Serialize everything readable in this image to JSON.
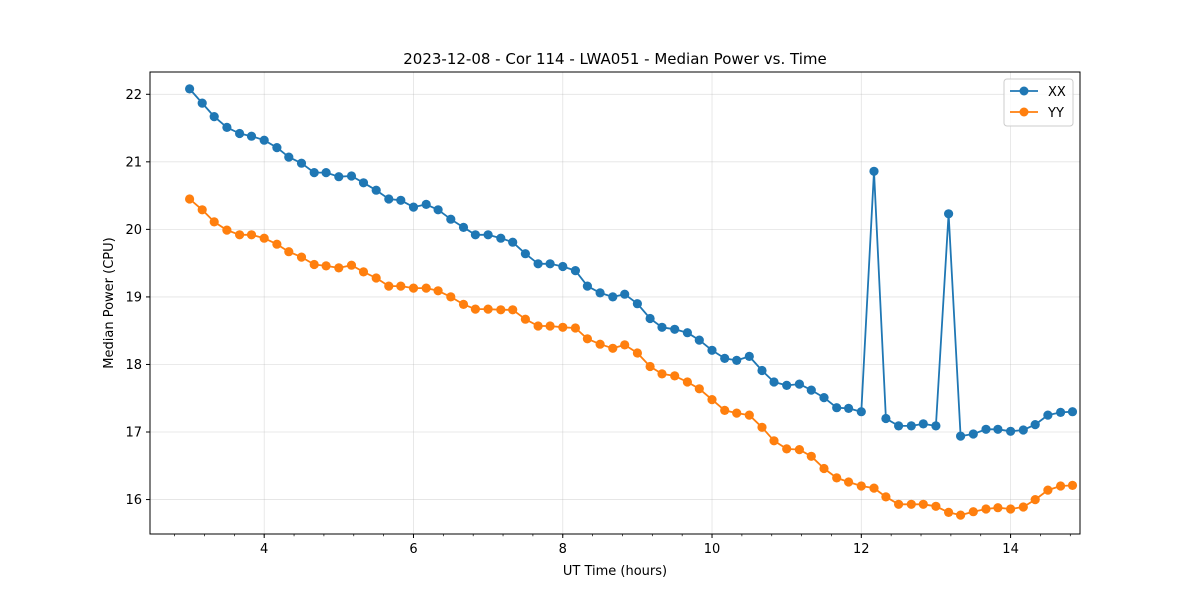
{
  "chart_data": {
    "type": "line",
    "title": "2023-12-08 - Cor 114 - LWA051 - Median Power vs. Time",
    "xlabel": "UT Time (hours)",
    "ylabel": "Median Power (CPU)",
    "xlim": [
      2.47,
      14.93
    ],
    "ylim": [
      15.49,
      22.33
    ],
    "xticks": [
      4,
      6,
      8,
      10,
      12,
      14
    ],
    "xtick_labels": [
      "4",
      "6",
      "8",
      "10",
      "12",
      "14"
    ],
    "yticks": [
      16,
      17,
      18,
      19,
      20,
      21,
      22
    ],
    "ytick_labels": [
      "16",
      "17",
      "18",
      "19",
      "20",
      "21",
      "22"
    ],
    "x_minor_step": 0.4,
    "grid": true,
    "legend_position": "top-right",
    "x": [
      3.0,
      3.17,
      3.33,
      3.5,
      3.67,
      3.83,
      4.0,
      4.17,
      4.33,
      4.5,
      4.67,
      4.83,
      5.0,
      5.17,
      5.33,
      5.5,
      5.67,
      5.83,
      6.0,
      6.17,
      6.33,
      6.5,
      6.67,
      6.83,
      7.0,
      7.17,
      7.33,
      7.5,
      7.67,
      7.83,
      8.0,
      8.17,
      8.33,
      8.5,
      8.67,
      8.83,
      9.0,
      9.17,
      9.33,
      9.5,
      9.67,
      9.83,
      10.0,
      10.17,
      10.33,
      10.5,
      10.67,
      10.83,
      11.0,
      11.17,
      11.33,
      11.5,
      11.67,
      11.83,
      12.0,
      12.17,
      12.33,
      12.5,
      12.67,
      12.83,
      13.0,
      13.17,
      13.33,
      13.5,
      13.67,
      13.83,
      14.0,
      14.17,
      14.33,
      14.5,
      14.67,
      14.83
    ],
    "series": [
      {
        "name": "XX",
        "color": "#1f77b4",
        "values": [
          22.08,
          21.87,
          21.67,
          21.51,
          21.42,
          21.38,
          21.32,
          21.21,
          21.07,
          20.98,
          20.84,
          20.84,
          20.78,
          20.79,
          20.69,
          20.58,
          20.45,
          20.43,
          20.33,
          20.37,
          20.29,
          20.15,
          20.03,
          19.92,
          19.92,
          19.87,
          19.81,
          19.64,
          19.49,
          19.49,
          19.45,
          19.39,
          19.16,
          19.06,
          19.0,
          19.04,
          18.9,
          18.68,
          18.55,
          18.52,
          18.47,
          18.36,
          18.21,
          18.09,
          18.06,
          18.12,
          17.91,
          17.74,
          17.69,
          17.71,
          17.62,
          17.51,
          17.36,
          17.35,
          17.3,
          20.86,
          17.2,
          17.09,
          17.09,
          17.12,
          17.09,
          20.23,
          16.94,
          16.97,
          17.04,
          17.04,
          17.01,
          17.03,
          17.11,
          17.25,
          17.29,
          17.3
        ]
      },
      {
        "name": "YY",
        "color": "#ff7f0e",
        "values": [
          20.45,
          20.29,
          20.11,
          19.99,
          19.92,
          19.92,
          19.87,
          19.78,
          19.67,
          19.59,
          19.48,
          19.46,
          19.43,
          19.47,
          19.37,
          19.28,
          19.16,
          19.16,
          19.13,
          19.13,
          19.09,
          19.0,
          18.89,
          18.82,
          18.82,
          18.81,
          18.81,
          18.67,
          18.57,
          18.57,
          18.55,
          18.54,
          18.38,
          18.3,
          18.24,
          18.29,
          18.17,
          17.97,
          17.86,
          17.83,
          17.74,
          17.64,
          17.48,
          17.32,
          17.28,
          17.25,
          17.07,
          16.87,
          16.75,
          16.74,
          16.64,
          16.46,
          16.32,
          16.26,
          16.2,
          16.17,
          16.04,
          15.93,
          15.93,
          15.93,
          15.9,
          15.81,
          15.77,
          15.82,
          15.86,
          15.88,
          15.86,
          15.89,
          16.0,
          16.14,
          16.2,
          16.21
        ]
      }
    ]
  }
}
